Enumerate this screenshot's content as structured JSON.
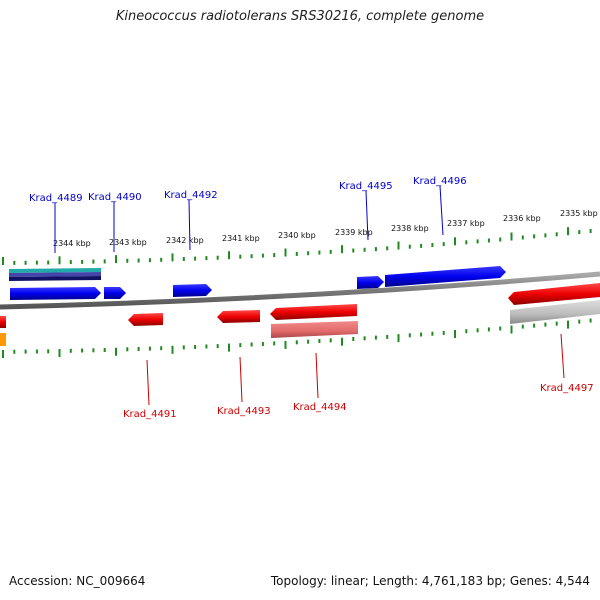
{
  "title": "Kineococcus radiotolerans SRS30216, complete genome",
  "accession": "Accession: NC_009664",
  "summary": "Topology: linear; Length: 4,761,183 bp; Genes: 4,544",
  "colors": {
    "forward": "#0000ee",
    "reverse": "#ee0000",
    "forward_label": "#0000cc",
    "reverse_label": "#cc0000",
    "backbone": "#808080",
    "ticks": "#228822"
  },
  "scale_labels": [
    "2344 kbp",
    "2343 kbp",
    "2342 kbp",
    "2341 kbp",
    "2340 kbp",
    "2339 kbp",
    "2338 kbp",
    "2337 kbp",
    "2336 kbp",
    "2335 kbp"
  ],
  "forward_genes": [
    "Krad_4489",
    "Krad_4490",
    "Krad_4492",
    "Krad_4495",
    "Krad_4496"
  ],
  "reverse_genes": [
    "Krad_4491",
    "Krad_4493",
    "Krad_4494",
    "Krad_4497"
  ]
}
